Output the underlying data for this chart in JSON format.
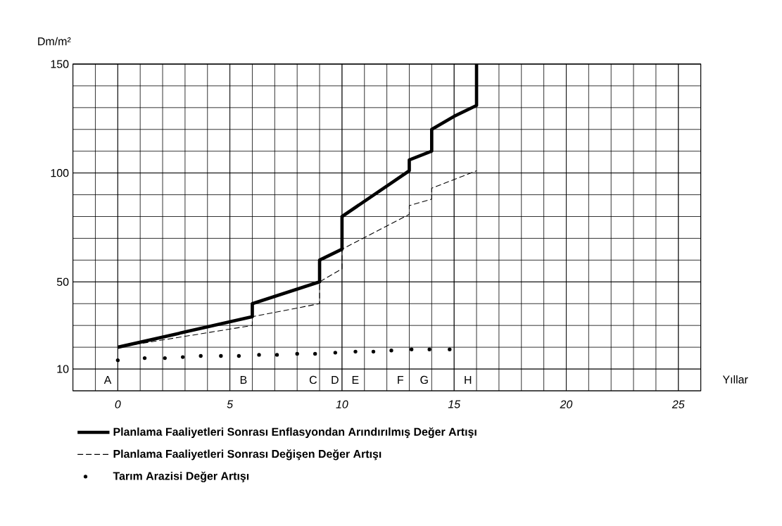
{
  "chart_data": {
    "type": "line",
    "ylabel": "Dm/m²",
    "xlabel": "Yıllar",
    "xlim": [
      -2,
      26
    ],
    "xticks": [
      0,
      5,
      10,
      15,
      20,
      25
    ],
    "ylim": [
      0,
      150
    ],
    "yticks": [
      10,
      50,
      100,
      150
    ],
    "grid": true,
    "legend": "bottom",
    "series": [
      {
        "name": "Planlama Faaliyetleri Sonrası Enflasyondan Arındırılmış Değer Artışı",
        "color": "#000000",
        "line_style": "solid",
        "marker": "none",
        "x": [
          0,
          6,
          6,
          9,
          9,
          10,
          10,
          13,
          13,
          14,
          14,
          15,
          16,
          16
        ],
        "values": [
          20,
          34,
          40,
          50,
          60,
          65,
          80,
          101,
          106,
          110,
          120,
          126,
          131,
          150
        ]
      },
      {
        "name": "Planlama Faaliyetleri Sonrası Değişen Değer Artışı",
        "color": "#000000",
        "line_style": "dashed",
        "marker": "none",
        "x": [
          0,
          6,
          6,
          9,
          9,
          10,
          10,
          13,
          13,
          14,
          14,
          16
        ],
        "values": [
          20,
          30,
          34,
          40,
          50,
          56,
          65,
          81,
          85,
          88,
          93,
          101
        ]
      },
      {
        "name": "Tarım Arazisi Değer Artışı",
        "type": "scatter",
        "color": "#000000",
        "marker": "circle",
        "x": [
          0,
          1.2,
          2.1,
          2.9,
          3.7,
          4.6,
          5.4,
          6.3,
          7.1,
          8.0,
          8.8,
          9.7,
          10.6,
          11.4,
          12.2,
          13.1,
          13.9,
          14.8
        ],
        "values": [
          14,
          15,
          15,
          15.5,
          16,
          16,
          16,
          16.5,
          16.5,
          17,
          17,
          17.5,
          18,
          18,
          18.5,
          19,
          19,
          19
        ]
      }
    ],
    "annotations": [
      "A",
      "B",
      "C",
      "D",
      "E",
      "F",
      "G",
      "H"
    ]
  }
}
